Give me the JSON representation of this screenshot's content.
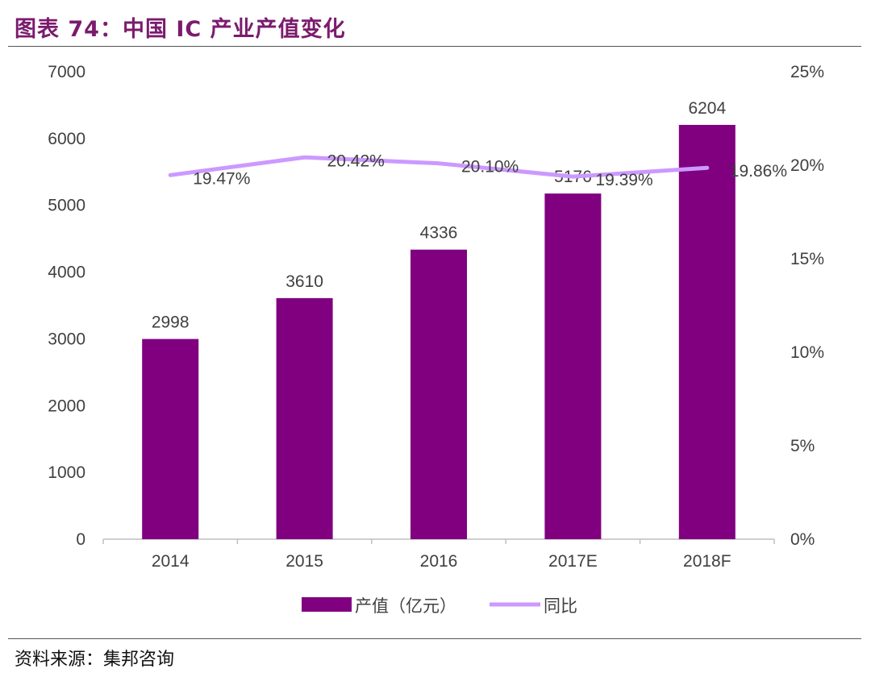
{
  "title": "图表 74：中国 IC 产业产值变化",
  "source": "资料来源：集邦咨询",
  "colors": {
    "bar": "#800080",
    "line": "#CC99FF",
    "title": "#7B1B6E"
  },
  "chart_data": {
    "type": "bar",
    "categories": [
      "2014",
      "2015",
      "2016",
      "2017E",
      "2018F"
    ],
    "series": [
      {
        "name": "产值（亿元）",
        "kind": "bar",
        "axis": "left",
        "values": [
          2998,
          3610,
          4336,
          5176,
          6204
        ],
        "labels": [
          "2998",
          "3610",
          "4336",
          "5176",
          "6204"
        ]
      },
      {
        "name": "同比",
        "kind": "line",
        "axis": "right",
        "values": [
          19.47,
          20.42,
          20.1,
          19.39,
          19.86
        ],
        "labels": [
          "19.47%",
          "20.42%",
          "20.10%",
          "19.39%",
          "19.86%"
        ]
      }
    ],
    "y_left": {
      "min": 0,
      "max": 7000,
      "ticks": [
        "0",
        "1000",
        "2000",
        "3000",
        "4000",
        "5000",
        "6000",
        "7000"
      ]
    },
    "y_right": {
      "min": 0,
      "max": 25,
      "ticks": [
        "0%",
        "5%",
        "10%",
        "15%",
        "20%",
        "25%"
      ]
    },
    "legend_position": "bottom-center",
    "grid": false
  }
}
